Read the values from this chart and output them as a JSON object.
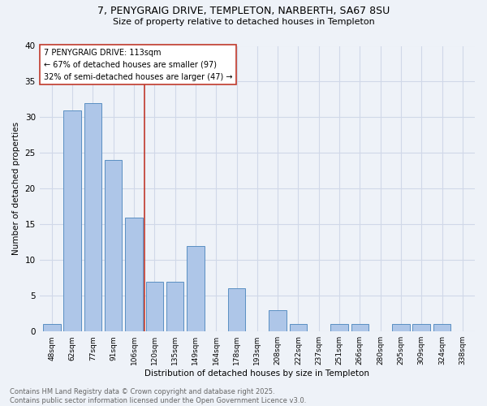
{
  "title_line1": "7, PENYGRAIG DRIVE, TEMPLETON, NARBERTH, SA67 8SU",
  "title_line2": "Size of property relative to detached houses in Templeton",
  "xlabel": "Distribution of detached houses by size in Templeton",
  "ylabel": "Number of detached properties",
  "categories": [
    "48sqm",
    "62sqm",
    "77sqm",
    "91sqm",
    "106sqm",
    "120sqm",
    "135sqm",
    "149sqm",
    "164sqm",
    "178sqm",
    "193sqm",
    "208sqm",
    "222sqm",
    "237sqm",
    "251sqm",
    "266sqm",
    "280sqm",
    "295sqm",
    "309sqm",
    "324sqm",
    "338sqm"
  ],
  "values": [
    1,
    31,
    32,
    24,
    16,
    7,
    7,
    12,
    0,
    6,
    0,
    3,
    1,
    0,
    1,
    1,
    0,
    1,
    1,
    1,
    0
  ],
  "bar_color": "#aec6e8",
  "bar_edge_color": "#5a8fc2",
  "vline_x": 4.5,
  "vline_color": "#c0392b",
  "annotation_text": "7 PENYGRAIG DRIVE: 113sqm\n← 67% of detached houses are smaller (97)\n32% of semi-detached houses are larger (47) →",
  "annotation_box_color": "white",
  "annotation_box_edge": "#c0392b",
  "ylim": [
    0,
    40
  ],
  "yticks": [
    0,
    5,
    10,
    15,
    20,
    25,
    30,
    35,
    40
  ],
  "footer_line1": "Contains HM Land Registry data © Crown copyright and database right 2025.",
  "footer_line2": "Contains public sector information licensed under the Open Government Licence v3.0.",
  "bg_color": "#eef2f8",
  "grid_color": "#d0d8e8"
}
